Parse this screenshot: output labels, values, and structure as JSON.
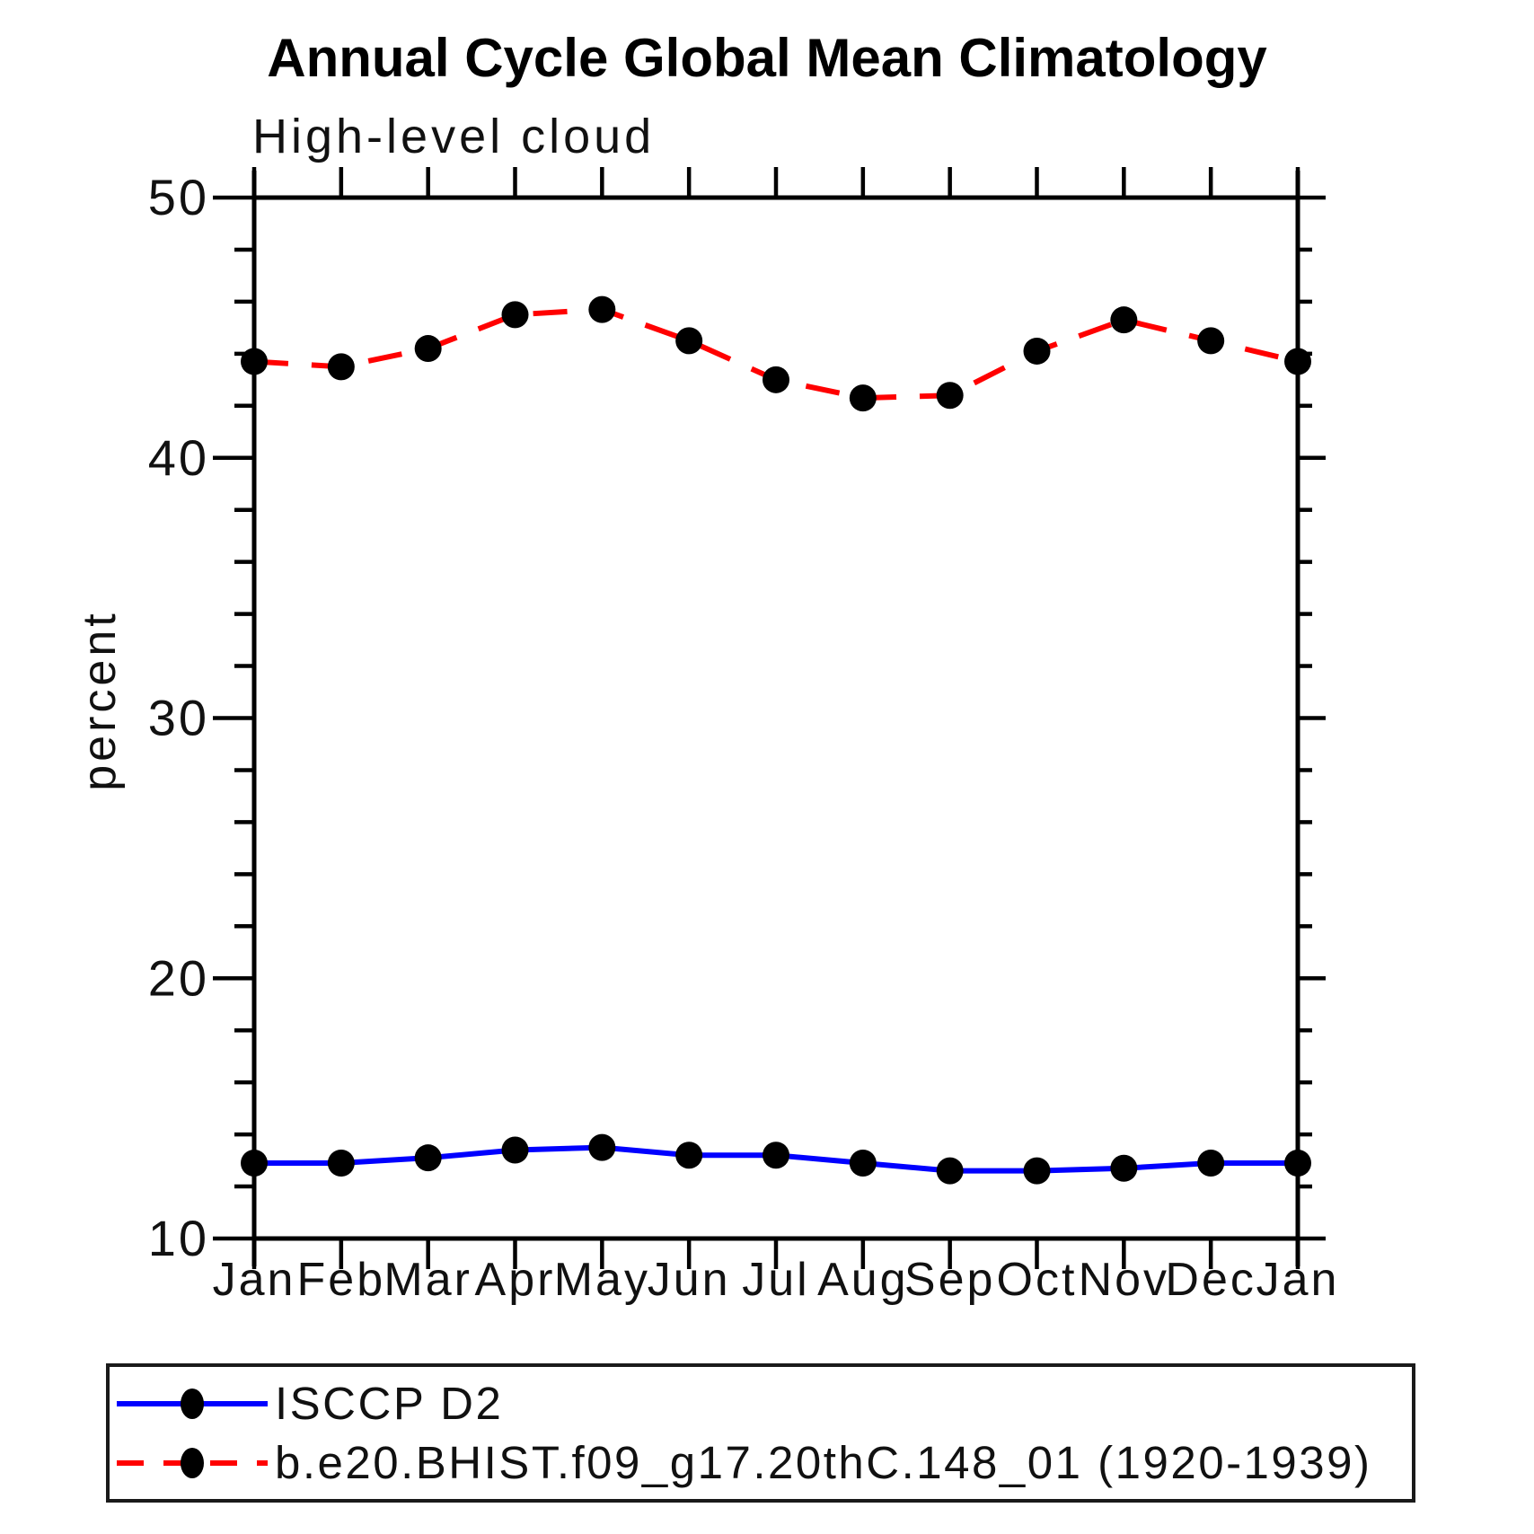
{
  "title": "Annual Cycle Global Mean Climatology",
  "chart_data": {
    "type": "line",
    "title": "Annual Cycle Global Mean Climatology",
    "subtitle": "High-level cloud",
    "ylabel": "percent",
    "ylim": [
      10,
      50
    ],
    "y_major_ticks": [
      10,
      20,
      30,
      40,
      50
    ],
    "y_minor_step": 2,
    "grid": false,
    "legend_position": "bottom",
    "categories": [
      "Jan",
      "Feb",
      "Mar",
      "Apr",
      "May",
      "Jun",
      "Jul",
      "Aug",
      "Sep",
      "Oct",
      "Nov",
      "Dec",
      "Jan"
    ],
    "series": [
      {
        "name": "ISCCP D2",
        "color": "#0000ff",
        "style": "solid",
        "marker": "black-dot",
        "values": [
          12.9,
          12.9,
          13.1,
          13.4,
          13.5,
          13.2,
          13.2,
          12.9,
          12.6,
          12.6,
          12.7,
          12.9,
          12.9
        ]
      },
      {
        "name": "b.e20.BHIST.f09_g17.20thC.148_01 (1920-1939)",
        "color": "#ff0000",
        "style": "dashed",
        "marker": "black-dot",
        "values": [
          43.7,
          43.5,
          44.2,
          45.5,
          45.7,
          44.5,
          43.0,
          42.3,
          42.4,
          44.1,
          45.3,
          44.5,
          43.7
        ]
      }
    ]
  }
}
